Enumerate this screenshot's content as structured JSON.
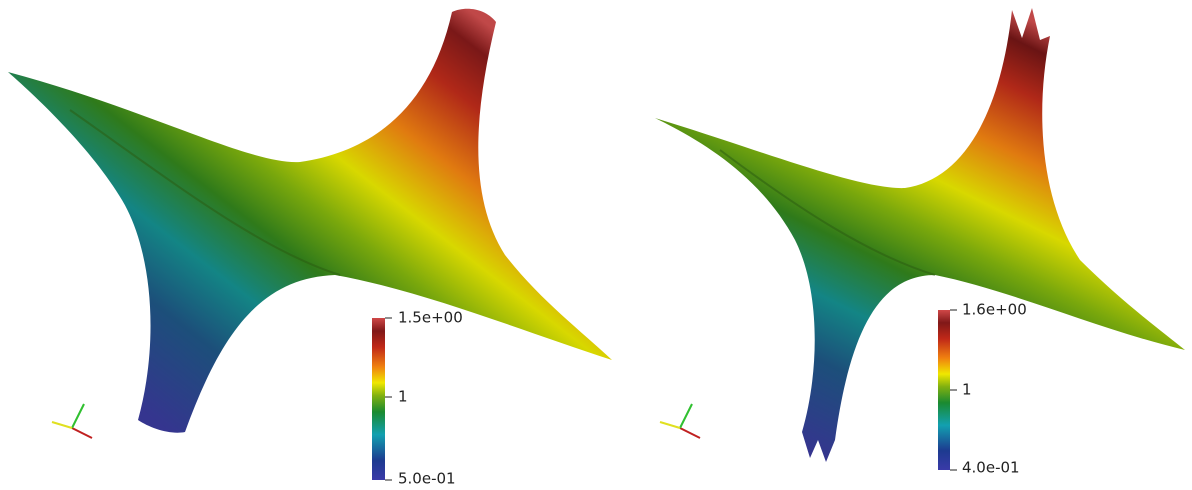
{
  "panels": [
    {
      "colorbar": {
        "max": "1.5e+00",
        "mid": "1",
        "min": "5.0e-01"
      }
    },
    {
      "colorbar": {
        "max": "1.6e+00",
        "mid": "1",
        "min": "4.0e-01"
      }
    }
  ]
}
